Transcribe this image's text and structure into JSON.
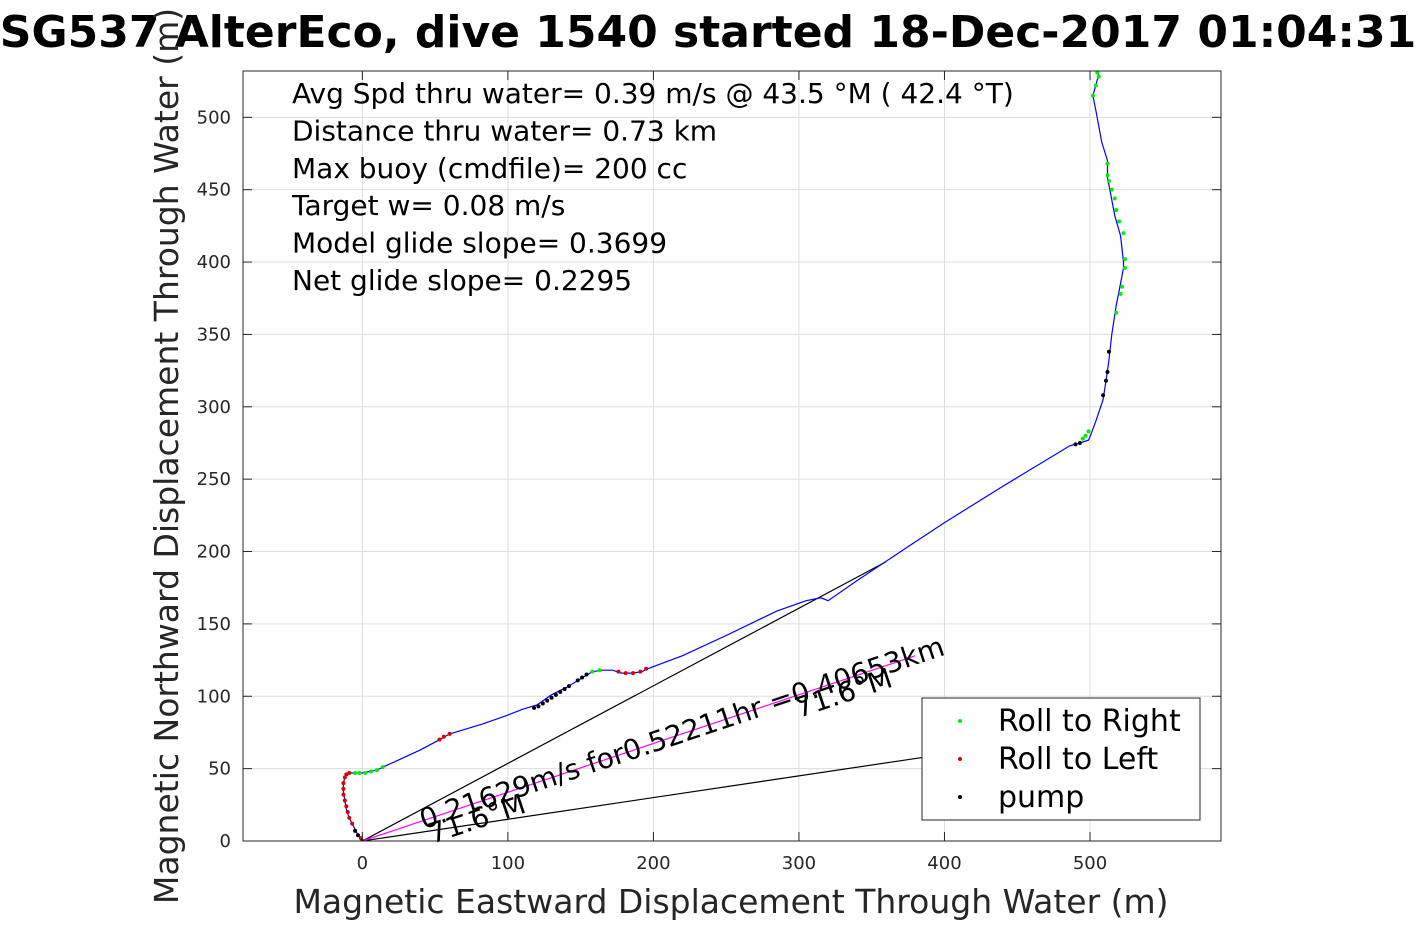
{
  "chart_data": {
    "type": "line",
    "title": "SG537 AlterEco, dive 1540 started 18-Dec-2017 01:04:31",
    "xlabel": "Magnetic Eastward Displacement Through Water (m)",
    "ylabel": "Magnetic Northward Displacement Through Water (m)",
    "xlim": [
      -82,
      590
    ],
    "ylim": [
      0,
      532
    ],
    "xticks": [
      0,
      100,
      200,
      300,
      400,
      500
    ],
    "yticks": [
      0,
      50,
      100,
      150,
      200,
      250,
      300,
      350,
      400,
      450,
      500
    ],
    "grid": true,
    "stats": [
      "Avg Spd thru water=  0.39 m/s @  43.5 °M ( 42.4 °T)",
      "Distance thru water=  0.73 km",
      "Max buoy (cmdfile)= 200 cc",
      "Target w= 0.08 m/s",
      "Model glide slope= 0.3699",
      "Net glide slope= 0.2295"
    ],
    "track": {
      "color": "#0000ff",
      "points": [
        [
          0,
          0
        ],
        [
          -3,
          4
        ],
        [
          -6,
          10
        ],
        [
          -9,
          16
        ],
        [
          -11,
          22
        ],
        [
          -12,
          28
        ],
        [
          -13,
          34
        ],
        [
          -13,
          40
        ],
        [
          -12,
          44
        ],
        [
          -11,
          46
        ],
        [
          -9,
          47
        ],
        [
          -5,
          47
        ],
        [
          0,
          47
        ],
        [
          5,
          48
        ],
        [
          10,
          49
        ],
        [
          14,
          51
        ],
        [
          25,
          56
        ],
        [
          40,
          63
        ],
        [
          53,
          70
        ],
        [
          60,
          74
        ],
        [
          70,
          77
        ],
        [
          83,
          81
        ],
        [
          100,
          87
        ],
        [
          110,
          91
        ],
        [
          120,
          94
        ],
        [
          130,
          101
        ],
        [
          140,
          106
        ],
        [
          150,
          112
        ],
        [
          158,
          117
        ],
        [
          165,
          118
        ],
        [
          172,
          118
        ],
        [
          178,
          116
        ],
        [
          186,
          116
        ],
        [
          192,
          117
        ],
        [
          196,
          119
        ],
        [
          220,
          128
        ],
        [
          250,
          142
        ],
        [
          285,
          159
        ],
        [
          305,
          166
        ],
        [
          315,
          168
        ],
        [
          320,
          166
        ],
        [
          340,
          180
        ],
        [
          370,
          200
        ],
        [
          400,
          220
        ],
        [
          440,
          245
        ],
        [
          486,
          273
        ],
        [
          493,
          275
        ],
        [
          499,
          277
        ],
        [
          501,
          282
        ],
        [
          504,
          290
        ],
        [
          509,
          305
        ],
        [
          511,
          318
        ],
        [
          513,
          332
        ],
        [
          515,
          350
        ],
        [
          518,
          370
        ],
        [
          520,
          380
        ],
        [
          523,
          396
        ],
        [
          523,
          400
        ],
        [
          521,
          418
        ],
        [
          517,
          432
        ],
        [
          514,
          448
        ],
        [
          512,
          458
        ],
        [
          512,
          470
        ],
        [
          508,
          483
        ],
        [
          504,
          505
        ],
        [
          502,
          515
        ],
        [
          504,
          522
        ],
        [
          506,
          530
        ]
      ]
    },
    "rays": [
      {
        "to": [
          360,
          193
        ],
        "color": "#000000"
      },
      {
        "to": [
          400,
          60
        ],
        "color": "#000000"
      },
      {
        "to": [
          380,
          128
        ],
        "color": "#ff00ff"
      }
    ],
    "annotations": [
      {
        "text": "0.21629m/s for0.52211hr =0.40653km",
        "x": 42,
        "y": 8,
        "angle": -18.5
      },
      {
        "text": "71.6°M",
        "x": 48,
        "y": -2,
        "angle": -18.5
      },
      {
        "text": "71.6°M",
        "x": 300,
        "y": 85,
        "angle": -18.5
      }
    ],
    "markers": {
      "roll_right": {
        "color": "#00ee00",
        "points": [
          [
            -5,
            47
          ],
          [
            -2,
            47
          ],
          [
            2,
            47
          ],
          [
            6,
            48
          ],
          [
            10,
            49
          ],
          [
            14,
            51
          ],
          [
            158,
            117
          ],
          [
            163,
            118
          ],
          [
            502,
            515
          ],
          [
            504,
            522
          ],
          [
            506,
            528
          ],
          [
            505,
            531
          ],
          [
            512,
            468
          ],
          [
            512,
            460
          ],
          [
            513,
            456
          ],
          [
            515,
            450
          ],
          [
            517,
            444
          ],
          [
            518,
            436
          ],
          [
            520,
            428
          ],
          [
            523,
            420
          ],
          [
            524,
            402
          ],
          [
            524,
            396
          ],
          [
            522,
            383
          ],
          [
            521,
            378
          ],
          [
            518,
            365
          ],
          [
            495,
            278
          ],
          [
            497,
            280
          ],
          [
            499,
            283
          ]
        ]
      },
      "roll_left": {
        "color": "#dd0000",
        "points": [
          [
            -12,
            44
          ],
          [
            -11,
            46
          ],
          [
            -9,
            47
          ],
          [
            -13,
            40
          ],
          [
            -13,
            36
          ],
          [
            -13,
            32
          ],
          [
            -12,
            28
          ],
          [
            -11,
            24
          ],
          [
            -10,
            20
          ],
          [
            -9,
            16
          ],
          [
            -7,
            12
          ],
          [
            53,
            70
          ],
          [
            56,
            72
          ],
          [
            60,
            74
          ],
          [
            176,
            117
          ],
          [
            181,
            116
          ],
          [
            186,
            116
          ],
          [
            191,
            117
          ],
          [
            195,
            119
          ],
          [
            -1,
            2
          ]
        ]
      },
      "pump": {
        "color": "#000000",
        "points": [
          [
            0,
            0
          ],
          [
            -3,
            4
          ],
          [
            -5,
            7
          ],
          [
            118,
            92
          ],
          [
            121,
            93
          ],
          [
            124,
            95
          ],
          [
            127,
            97
          ],
          [
            130,
            99
          ],
          [
            133,
            101
          ],
          [
            136,
            103
          ],
          [
            139,
            105
          ],
          [
            142,
            107
          ],
          [
            148,
            111
          ],
          [
            151,
            113
          ],
          [
            154,
            115
          ],
          [
            490,
            274
          ],
          [
            493,
            275
          ],
          [
            509,
            308
          ],
          [
            511,
            318
          ],
          [
            512,
            324
          ],
          [
            513,
            338
          ]
        ]
      }
    },
    "legend": {
      "placement": "bottom-right",
      "entries": [
        {
          "label": "Roll to Right",
          "series": "roll_right"
        },
        {
          "label": "Roll to Left",
          "series": "roll_left"
        },
        {
          "label": "pump",
          "series": "pump"
        }
      ]
    }
  }
}
